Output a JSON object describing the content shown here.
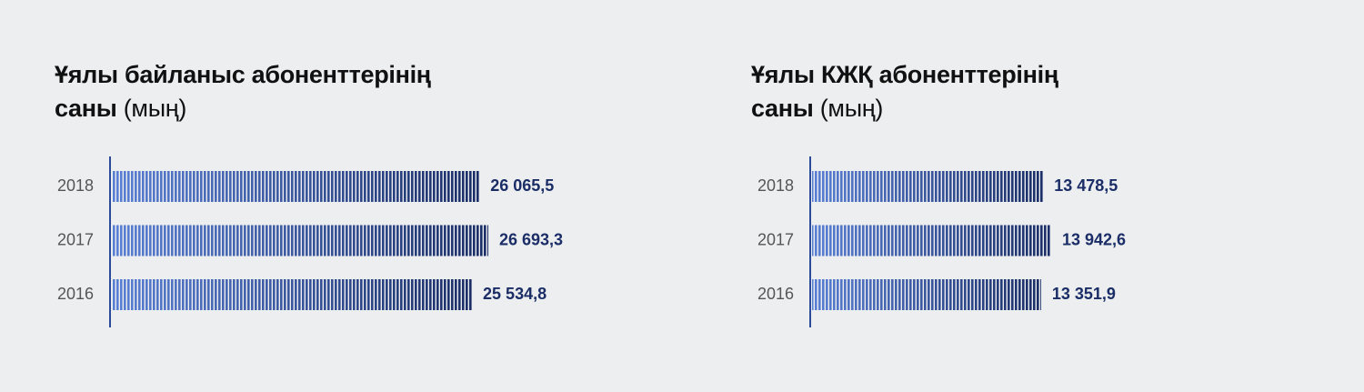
{
  "chart_data": [
    {
      "type": "bar",
      "orientation": "horizontal",
      "title": "Ұялы байланыс абоненттерінің саны",
      "unit": "(мың)",
      "categories": [
        "2018",
        "2017",
        "2016"
      ],
      "values": [
        26065.5,
        26693.3,
        25534.8
      ],
      "value_labels": [
        "26 065,5",
        "26 693,3",
        "25 534,8"
      ],
      "color": "#1a2d66"
    },
    {
      "type": "bar",
      "orientation": "horizontal",
      "title": "Ұялы КЖҚ абоненттерінің саны",
      "unit": "(мың)",
      "categories": [
        "2018",
        "2017",
        "2016"
      ],
      "values": [
        13478.5,
        13942.6,
        13351.9
      ],
      "value_labels": [
        "13 478,5",
        "13 942,6",
        "13 351,9"
      ],
      "color": "#1a2d66"
    }
  ]
}
